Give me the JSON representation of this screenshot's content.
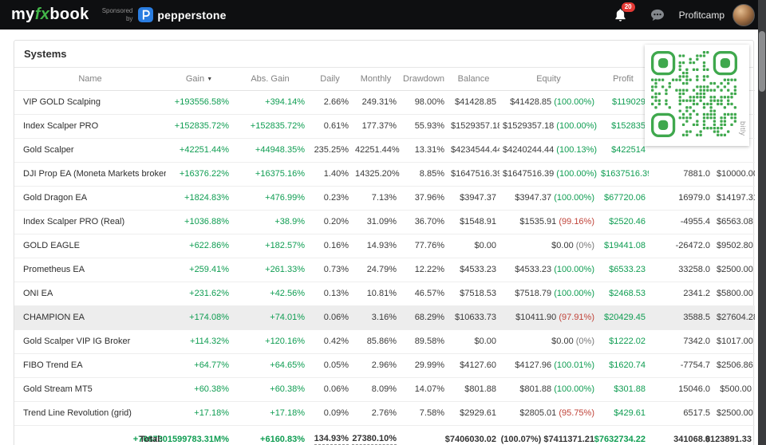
{
  "colors": {
    "positive": "#0f9d52",
    "negative": "#c0443a",
    "badge_red": "#e53935",
    "brand_green": "#43b649",
    "pepperstone_blue": "#2a7de1",
    "qr_green": "#3fa84d"
  },
  "navbar": {
    "logo_my": "my",
    "logo_fx": "fx",
    "logo_book": "book",
    "sponsored_line1": "Sponsored",
    "sponsored_line2": "by",
    "sponsor_name": "pepperstone",
    "notification_count": "20",
    "username": "Profitcamp"
  },
  "page": {
    "title": "Systems"
  },
  "qr": {
    "brand": "bitly"
  },
  "table": {
    "sort_indicator": "▼",
    "headers": [
      "Name",
      "Gain",
      "Abs. Gain",
      "Daily",
      "Monthly",
      "Drawdown",
      "Balance",
      "Equity",
      "Profit",
      "",
      ""
    ],
    "rows": [
      {
        "name": "VIP GOLD Scalping",
        "gain": "+193556.58%",
        "abs_gain": "+394.14%",
        "daily": "2.66%",
        "monthly": "249.31%",
        "drawdown": "98.00%",
        "balance": "$41428.85",
        "equity": "$41428.85",
        "equity_pct": "(100.00%)",
        "profit": "$119029",
        "pips": "",
        "deposit": ""
      },
      {
        "name": "Index Scalper PRO",
        "gain": "+152835.72%",
        "abs_gain": "+152835.72%",
        "daily": "0.61%",
        "monthly": "177.37%",
        "drawdown": "55.93%",
        "balance": "$1529357.18",
        "equity": "$1529357.18",
        "equity_pct": "(100.00%)",
        "profit": "$152835",
        "pips": "",
        "deposit": ""
      },
      {
        "name": "Gold Scalper",
        "gain": "+42251.44%",
        "abs_gain": "+44948.35%",
        "daily": "235.25%",
        "monthly": "42251.44%",
        "drawdown": "13.31%",
        "balance": "$4234544.44",
        "equity": "$4240244.44",
        "equity_pct": "(100.13%)",
        "profit": "$422514",
        "pips": "",
        "deposit": ""
      },
      {
        "name": "DJI Prop EA (Moneta Markets broker)",
        "gain": "+16376.22%",
        "abs_gain": "+16375.16%",
        "daily": "1.40%",
        "monthly": "14325.20%",
        "drawdown": "8.85%",
        "balance": "$1647516.39",
        "equity": "$1647516.39",
        "equity_pct": "(100.00%)",
        "profit": "$1637516.39",
        "pips": "7881.0",
        "deposit": "$10000.00"
      },
      {
        "name": "Gold Dragon EA",
        "gain": "+1824.83%",
        "abs_gain": "+476.99%",
        "daily": "0.23%",
        "monthly": "7.13%",
        "drawdown": "37.96%",
        "balance": "$3947.37",
        "equity": "$3947.37",
        "equity_pct": "(100.00%)",
        "profit": "$67720.06",
        "pips": "16979.0",
        "deposit": "$14197.31"
      },
      {
        "name": "Index Scalper PRO (Real)",
        "gain": "+1036.88%",
        "abs_gain": "+38.9%",
        "daily": "0.20%",
        "monthly": "31.09%",
        "drawdown": "36.70%",
        "balance": "$1548.91",
        "equity": "$1535.91",
        "equity_pct": "(99.16%)",
        "profit": "$2520.46",
        "pips": "-4955.4",
        "deposit": "$6563.08"
      },
      {
        "name": "GOLD EAGLE",
        "gain": "+622.86%",
        "abs_gain": "+182.57%",
        "daily": "0.16%",
        "monthly": "14.93%",
        "drawdown": "77.76%",
        "balance": "$0.00",
        "equity": "$0.00",
        "equity_pct": "(0%)",
        "profit": "$19441.08",
        "pips": "-26472.0",
        "deposit": "$9502.80"
      },
      {
        "name": "Prometheus EA",
        "gain": "+259.41%",
        "abs_gain": "+261.33%",
        "daily": "0.73%",
        "monthly": "24.79%",
        "drawdown": "12.22%",
        "balance": "$4533.23",
        "equity": "$4533.23",
        "equity_pct": "(100.00%)",
        "profit": "$6533.23",
        "pips": "33258.0",
        "deposit": "$2500.00"
      },
      {
        "name": "ONI EA",
        "gain": "+231.62%",
        "abs_gain": "+42.56%",
        "daily": "0.13%",
        "monthly": "10.81%",
        "drawdown": "46.57%",
        "balance": "$7518.53",
        "equity": "$7518.79",
        "equity_pct": "(100.00%)",
        "profit": "$2468.53",
        "pips": "2341.2",
        "deposit": "$5800.00"
      },
      {
        "name": "CHAMPION EA",
        "gain": "+174.08%",
        "abs_gain": "+74.01%",
        "daily": "0.06%",
        "monthly": "3.16%",
        "drawdown": "68.29%",
        "balance": "$10633.73",
        "equity": "$10411.90",
        "equity_pct": "(97.91%)",
        "profit": "$20429.45",
        "pips": "3588.5",
        "deposit": "$27604.28",
        "highlight": true
      },
      {
        "name": "Gold Scalper VIP IG Broker",
        "gain": "+114.32%",
        "abs_gain": "+120.16%",
        "daily": "0.42%",
        "monthly": "85.86%",
        "drawdown": "89.58%",
        "balance": "$0.00",
        "equity": "$0.00",
        "equity_pct": "(0%)",
        "profit": "$1222.02",
        "pips": "7342.0",
        "deposit": "$1017.00"
      },
      {
        "name": "FIBO Trend EA",
        "gain": "+64.77%",
        "abs_gain": "+64.65%",
        "daily": "0.05%",
        "monthly": "2.96%",
        "drawdown": "29.99%",
        "balance": "$4127.60",
        "equity": "$4127.96",
        "equity_pct": "(100.01%)",
        "profit": "$1620.74",
        "pips": "-7754.7",
        "deposit": "$2506.86"
      },
      {
        "name": "Gold Stream MT5",
        "gain": "+60.38%",
        "abs_gain": "+60.38%",
        "daily": "0.06%",
        "monthly": "8.09%",
        "drawdown": "14.07%",
        "balance": "$801.88",
        "equity": "$801.88",
        "equity_pct": "(100.00%)",
        "profit": "$301.88",
        "pips": "15046.0",
        "deposit": "$500.00"
      },
      {
        "name": "Trend Line Revolution (grid)",
        "gain": "+17.18%",
        "abs_gain": "+17.18%",
        "daily": "0.09%",
        "monthly": "2.76%",
        "drawdown": "7.58%",
        "balance": "$2929.61",
        "equity": "$2805.01",
        "equity_pct": "(95.75%)",
        "profit": "$429.61",
        "pips": "6517.5",
        "deposit": "$2500.00"
      }
    ],
    "total": {
      "label": "Total:",
      "gain": "+7087301599783.31M%",
      "abs_gain": "+6160.83%",
      "daily": "134.93%",
      "monthly": "27380.10%",
      "drawdown": "",
      "balance": "$7406030.02",
      "equity": "(100.07%) $7411371.21",
      "profit": "$7632734.22",
      "pips": "341068.0",
      "deposit": "$123891.33"
    }
  }
}
